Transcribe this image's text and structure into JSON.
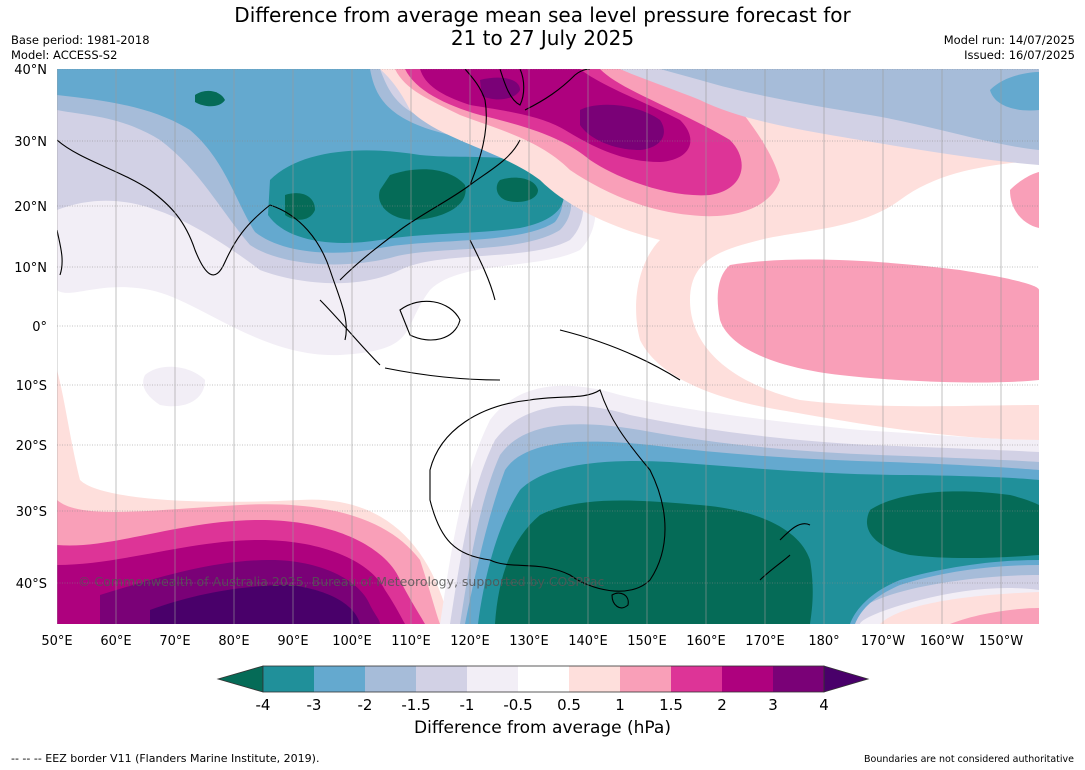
{
  "title": {
    "line1": "Difference from average mean sea level pressure forecast for",
    "line2": "21 to 27 July 2025"
  },
  "meta_left": {
    "base_period": "Base period: 1981-2018",
    "model": "Model: ACCESS-S2"
  },
  "meta_right": {
    "model_run": "Model run: 14/07/2025",
    "issued": "Issued: 16/07/2025"
  },
  "map": {
    "lat_labels": [
      "40°N",
      "30°N",
      "20°N",
      "10°N",
      "0°",
      "10°S",
      "20°S",
      "30°S",
      "40°S"
    ],
    "lon_labels": [
      "50°E",
      "60°E",
      "70°E",
      "80°E",
      "90°E",
      "100°E",
      "110°E",
      "120°E",
      "130°E",
      "140°E",
      "150°E",
      "160°E",
      "170°E",
      "180°",
      "170°W",
      "160°W",
      "150°W"
    ],
    "copyright": "© Commonwealth of Australia 2025, Bureau of Meteorology, supported by COSPPac"
  },
  "colorbar": {
    "title": "Difference from average (hPa)",
    "tick_labels": [
      "-4",
      "-3",
      "-2",
      "-1.5",
      "-1",
      "-0.5",
      "0.5",
      "1",
      "1.5",
      "2",
      "3",
      "4"
    ],
    "colors": [
      "#056b57",
      "#20909a",
      "#64a9cf",
      "#a6bcd9",
      "#d2d1e5",
      "#f2eef6",
      "#ffffff",
      "#fedfdc",
      "#f99fb8",
      "#dd3497",
      "#ae017e",
      "#7a0177",
      "#49006a"
    ]
  },
  "footer": {
    "eez_note": "-- -- -- EEZ border V11 (Flanders Marine Institute, 2019).",
    "boundaries_note": "Boundaries are not considered authoritative"
  }
}
